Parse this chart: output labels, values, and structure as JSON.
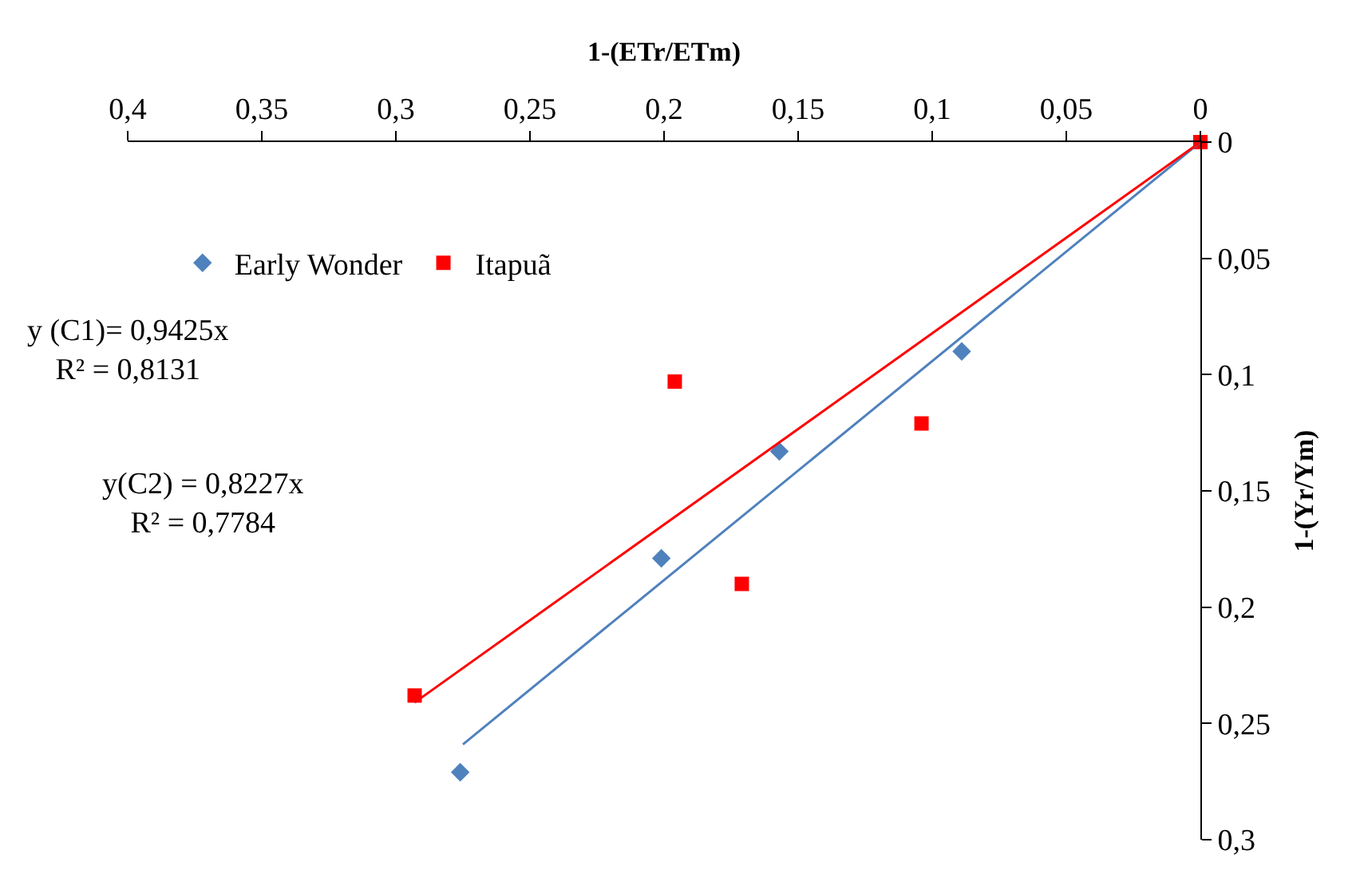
{
  "chart_data": {
    "type": "scatter",
    "xlabel": "1-(ETr/ETm)",
    "ylabel": "1-(Yr/Ym)",
    "xlim": [
      0.4,
      0
    ],
    "ylim": [
      0.3,
      0
    ],
    "xticks": [
      {
        "value": 0.4,
        "label": "0,4"
      },
      {
        "value": 0.35,
        "label": "0,35"
      },
      {
        "value": 0.3,
        "label": "0,3"
      },
      {
        "value": 0.25,
        "label": "0,25"
      },
      {
        "value": 0.2,
        "label": "0,2"
      },
      {
        "value": 0.15,
        "label": "0,15"
      },
      {
        "value": 0.1,
        "label": "0,1"
      },
      {
        "value": 0.05,
        "label": "0,05"
      },
      0
    ],
    "yticks": [
      0,
      {
        "value": 0.05,
        "label": "0,05"
      },
      {
        "value": 0.1,
        "label": "0,1"
      },
      {
        "value": 0.15,
        "label": "0,15"
      },
      {
        "value": 0.2,
        "label": "0,2"
      },
      {
        "value": 0.25,
        "label": "0,25"
      },
      {
        "value": 0.3,
        "label": "0,3"
      }
    ],
    "legend": "top left",
    "series": [
      {
        "name": "Early Wonder",
        "color": "#4f81bd",
        "marker": "diamond",
        "x": [
          0.276,
          0.201,
          0.157,
          0.089
        ],
        "values": [
          0.271,
          0.179,
          0.133,
          0.09
        ]
      },
      {
        "name": "Itapuã",
        "color": "#ff0000",
        "marker": "square",
        "x": [
          0.293,
          0.196,
          0.171,
          0.104,
          0
        ],
        "values": [
          0.238,
          0.103,
          0.19,
          0.121,
          0
        ]
      },
      {
        "type": "line",
        "color": "#4f81bd",
        "x": [
          0.275,
          0
        ],
        "values": [
          0.259,
          0
        ]
      },
      {
        "type": "line",
        "color": "#ff0000",
        "x": [
          0.293,
          0
        ],
        "values": [
          0.241,
          0
        ]
      }
    ],
    "annotations": [
      "y (C1)= 0,9425x\nR² = 0,8131",
      "y(C2) = 0,8227x\nR² = 0,7784"
    ]
  }
}
